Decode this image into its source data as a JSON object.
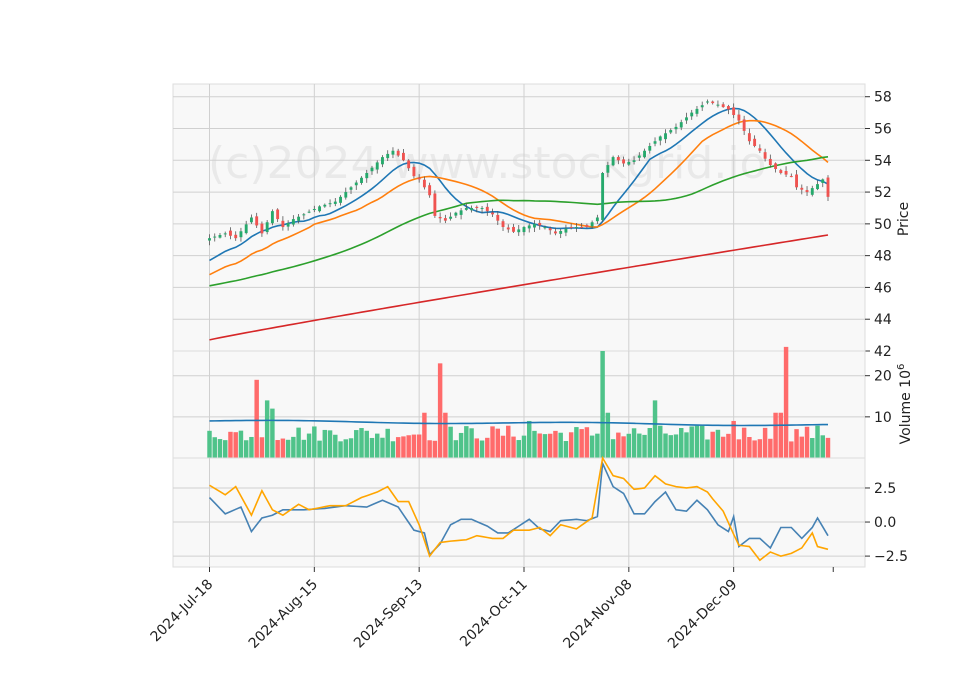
{
  "chart_data": {
    "type": "candlestick",
    "watermark": "(c)2024 www.stockgrid.io",
    "x_tick_labels": [
      "2024-Jul-18",
      "2024-Aug-15",
      "2024-Sep-13",
      "2024-Oct-11",
      "2024-Nov-08",
      "2024-Dec-09"
    ],
    "x_tick_index": [
      0,
      20,
      40,
      60,
      80,
      100
    ],
    "n_bars": 119,
    "price_panel": {
      "ylabel": "Price",
      "ylim": [
        42,
        58.8
      ],
      "yticks": [
        "42",
        "44",
        "46",
        "48",
        "50",
        "52",
        "54",
        "56",
        "58"
      ],
      "ytick_values": [
        42,
        44,
        46,
        48,
        50,
        52,
        54,
        56,
        58
      ],
      "close_anchors": [
        [
          0,
          49.1
        ],
        [
          3,
          49.4
        ],
        [
          5,
          49.1
        ],
        [
          8,
          50.4
        ],
        [
          10,
          49.4
        ],
        [
          12,
          50.8
        ],
        [
          14,
          49.8
        ],
        [
          16,
          50.3
        ],
        [
          18,
          50.6
        ],
        [
          21,
          51.1
        ],
        [
          24,
          51.4
        ],
        [
          27,
          52.3
        ],
        [
          30,
          53.2
        ],
        [
          33,
          54.2
        ],
        [
          35,
          54.6
        ],
        [
          37,
          54.0
        ],
        [
          38,
          53.5
        ],
        [
          39,
          53.0
        ],
        [
          40,
          52.8
        ],
        [
          42,
          51.8
        ],
        [
          43,
          50.5
        ],
        [
          45,
          50.2
        ],
        [
          47,
          50.7
        ],
        [
          49,
          51.0
        ],
        [
          52,
          51.0
        ],
        [
          54,
          50.6
        ],
        [
          56,
          49.8
        ],
        [
          58,
          49.5
        ],
        [
          60,
          49.8
        ],
        [
          62,
          50.0
        ],
        [
          64,
          49.8
        ],
        [
          66,
          49.4
        ],
        [
          68,
          49.7
        ],
        [
          70,
          49.8
        ],
        [
          72,
          49.8
        ],
        [
          74,
          50.4
        ],
        [
          75,
          53.2
        ],
        [
          77,
          54.2
        ],
        [
          79,
          53.8
        ],
        [
          81,
          54.0
        ],
        [
          83,
          54.6
        ],
        [
          86,
          55.5
        ],
        [
          89,
          56.1
        ],
        [
          92,
          57.0
        ],
        [
          95,
          57.7
        ],
        [
          97,
          57.5
        ],
        [
          99,
          57.2
        ],
        [
          101,
          56.5
        ],
        [
          103,
          55.2
        ],
        [
          105,
          54.6
        ],
        [
          106,
          54.1
        ],
        [
          107,
          53.7
        ],
        [
          109,
          53.2
        ],
        [
          111,
          53.0
        ],
        [
          112,
          52.3
        ],
        [
          114,
          52.0
        ],
        [
          116,
          52.5
        ],
        [
          117,
          52.8
        ],
        [
          118,
          51.7
        ]
      ],
      "moving_averages": [
        {
          "window": 10,
          "color": "#1f77b4"
        },
        {
          "window": 20,
          "color": "#ff7f0e"
        },
        {
          "window": 50,
          "color": "#2ca02c",
          "start": 46.1
        },
        {
          "window": 200,
          "color": "#d62728",
          "start": 42.7,
          "end": 49.3
        }
      ],
      "up_color": "#26a96c",
      "down_color": "#ef5350"
    },
    "volume_panel": {
      "ylabel": "Volume  10^6",
      "ylim": [
        0,
        26
      ],
      "yticks": [
        "10",
        "20"
      ],
      "ytick_values": [
        10,
        20
      ],
      "spikes": [
        [
          9,
          19
        ],
        [
          11,
          14
        ],
        [
          12,
          12
        ],
        [
          41,
          11
        ],
        [
          44,
          23
        ],
        [
          45,
          11
        ],
        [
          61,
          9
        ],
        [
          75,
          26
        ],
        [
          76,
          11
        ],
        [
          85,
          14
        ],
        [
          100,
          9
        ],
        [
          108,
          11
        ],
        [
          109,
          11
        ],
        [
          110,
          27
        ]
      ],
      "avg_start": 9.0,
      "avg_end": 8.0,
      "avg_color": "#1f77b4"
    },
    "oscillator_panel": {
      "ylim": [
        -3.3,
        4.7
      ],
      "yticks": [
        "−2.5",
        "0.0",
        "2.5"
      ],
      "ytick_values": [
        -2.5,
        0,
        2.5
      ],
      "lines": [
        {
          "color": "#4682b4",
          "anchors": [
            [
              0,
              1.8
            ],
            [
              3,
              0.6
            ],
            [
              6,
              1.1
            ],
            [
              8,
              -0.7
            ],
            [
              10,
              0.3
            ],
            [
              12,
              0.5
            ],
            [
              14,
              0.9
            ],
            [
              18,
              0.9
            ],
            [
              22,
              1.0
            ],
            [
              26,
              1.2
            ],
            [
              30,
              1.1
            ],
            [
              33,
              1.6
            ],
            [
              36,
              1.1
            ],
            [
              39,
              -0.6
            ],
            [
              41,
              -0.8
            ],
            [
              42,
              -2.4
            ],
            [
              44,
              -1.6
            ],
            [
              46,
              -0.2
            ],
            [
              48,
              0.2
            ],
            [
              50,
              0.2
            ],
            [
              53,
              -0.3
            ],
            [
              55,
              -0.8
            ],
            [
              57,
              -0.8
            ],
            [
              59,
              -0.3
            ],
            [
              61,
              0.2
            ],
            [
              63,
              -0.5
            ],
            [
              65,
              -0.7
            ],
            [
              67,
              0.1
            ],
            [
              70,
              0.2
            ],
            [
              72,
              0.1
            ],
            [
              74,
              0.4
            ],
            [
              75,
              4.3
            ],
            [
              77,
              2.6
            ],
            [
              79,
              2.1
            ],
            [
              81,
              0.6
            ],
            [
              83,
              0.6
            ],
            [
              85,
              1.5
            ],
            [
              87,
              2.2
            ],
            [
              89,
              0.9
            ],
            [
              91,
              0.8
            ],
            [
              93,
              1.6
            ],
            [
              95,
              0.9
            ],
            [
              97,
              -0.2
            ],
            [
              99,
              -0.7
            ],
            [
              100,
              0.4
            ],
            [
              101,
              -1.8
            ],
            [
              103,
              -1.2
            ],
            [
              105,
              -1.2
            ],
            [
              107,
              -1.9
            ],
            [
              109,
              -0.4
            ],
            [
              111,
              -0.4
            ],
            [
              113,
              -1.2
            ],
            [
              115,
              -0.4
            ],
            [
              116,
              0.3
            ],
            [
              118,
              -1.0
            ]
          ]
        },
        {
          "color": "#ffa500",
          "anchors": [
            [
              0,
              2.7
            ],
            [
              3,
              2.0
            ],
            [
              5,
              2.6
            ],
            [
              8,
              0.5
            ],
            [
              10,
              2.3
            ],
            [
              12,
              0.9
            ],
            [
              14,
              0.5
            ],
            [
              17,
              1.3
            ],
            [
              19,
              0.9
            ],
            [
              23,
              1.2
            ],
            [
              26,
              1.2
            ],
            [
              29,
              1.8
            ],
            [
              32,
              2.2
            ],
            [
              34,
              2.6
            ],
            [
              36,
              1.5
            ],
            [
              38,
              1.5
            ],
            [
              40,
              -0.2
            ],
            [
              42,
              -2.5
            ],
            [
              44,
              -1.5
            ],
            [
              46,
              -1.4
            ],
            [
              49,
              -1.3
            ],
            [
              51,
              -1.0
            ],
            [
              54,
              -1.2
            ],
            [
              56,
              -1.2
            ],
            [
              58,
              -0.6
            ],
            [
              61,
              -0.6
            ],
            [
              63,
              -0.4
            ],
            [
              65,
              -1.0
            ],
            [
              67,
              -0.2
            ],
            [
              70,
              -0.5
            ],
            [
              73,
              0.3
            ],
            [
              75,
              4.7
            ],
            [
              77,
              3.4
            ],
            [
              79,
              3.2
            ],
            [
              81,
              2.4
            ],
            [
              83,
              2.5
            ],
            [
              85,
              3.4
            ],
            [
              87,
              2.8
            ],
            [
              89,
              2.6
            ],
            [
              91,
              2.5
            ],
            [
              93,
              2.6
            ],
            [
              95,
              2.2
            ],
            [
              96,
              1.7
            ],
            [
              98,
              0.8
            ],
            [
              100,
              -0.9
            ],
            [
              101,
              -1.7
            ],
            [
              103,
              -1.8
            ],
            [
              105,
              -2.8
            ],
            [
              107,
              -2.2
            ],
            [
              109,
              -2.5
            ],
            [
              111,
              -2.3
            ],
            [
              113,
              -1.9
            ],
            [
              115,
              -0.8
            ],
            [
              116,
              -1.8
            ],
            [
              118,
              -2.0
            ]
          ]
        }
      ]
    }
  }
}
